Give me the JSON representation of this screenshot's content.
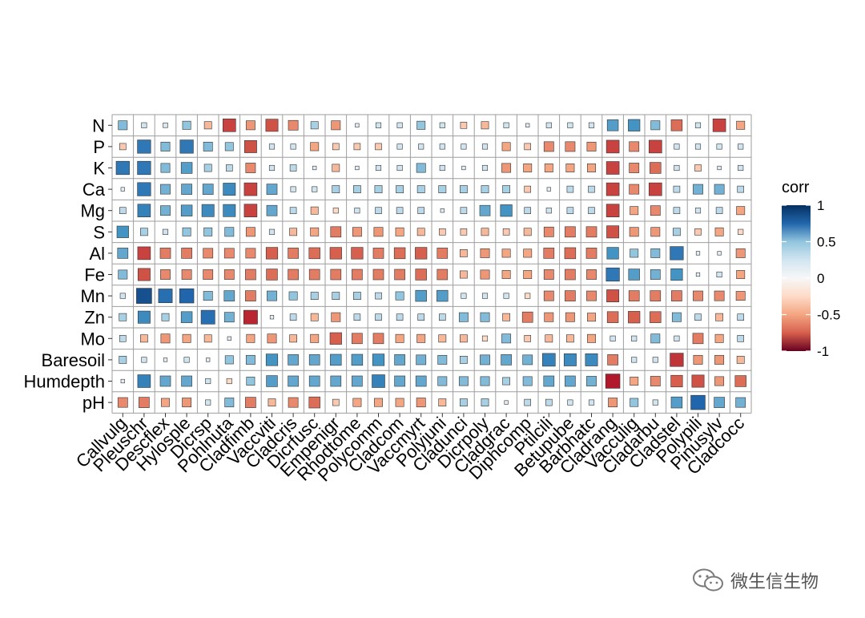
{
  "chart_data": {
    "type": "heatmap",
    "title": "",
    "xlabel": "",
    "ylabel": "",
    "legend": {
      "title": "corr",
      "placement": "right",
      "ticks": [
        1,
        0.5,
        0,
        -0.5,
        -1
      ]
    },
    "grid": true,
    "colorscale": {
      "-1": "#67001f",
      "-0.5": "#f4a582",
      "0": "#ffffff",
      "0.5": "#92c5de",
      "1": "#053061"
    },
    "x": [
      "Callvulg",
      "Pleuschr",
      "Descflex",
      "Hylosple",
      "Dicrsp",
      "Pohlnuta",
      "Cladfimb",
      "Vaccviti",
      "Cladcris",
      "Dicrfusc",
      "Empenigr",
      "Rhodtome",
      "Polycomm",
      "Cladcom",
      "Vaccmyrt",
      "Polyjuni",
      "Cladunci",
      "Dicrpoly",
      "Cladgrac",
      "Diphcomp",
      "Ptilcili",
      "Betupube",
      "Barbhatc",
      "Cladrang",
      "Vacculig",
      "Cladarbu",
      "Cladstel",
      "Polypili",
      "Pinusylv",
      "Cladcocc"
    ],
    "y": [
      "N",
      "P",
      "K",
      "Ca",
      "Mg",
      "S",
      "Al",
      "Fe",
      "Mn",
      "Zn",
      "Mo",
      "Baresoil",
      "Humdepth",
      "pH"
    ],
    "values": [
      [
        0.3,
        0.1,
        0.08,
        0.25,
        -0.2,
        -0.6,
        -0.3,
        -0.55,
        -0.35,
        0.2,
        -0.3,
        0.05,
        0.1,
        0.1,
        0.25,
        0.1,
        -0.15,
        -0.2,
        0.1,
        0.05,
        0.1,
        0.1,
        0.1,
        0.45,
        0.5,
        0.3,
        -0.45,
        0.1,
        -0.6,
        -0.25
      ],
      [
        -0.15,
        0.65,
        0.3,
        0.65,
        0.3,
        0.25,
        -0.55,
        0.1,
        0.1,
        -0.25,
        -0.15,
        -0.15,
        -0.15,
        0.1,
        0.1,
        0.1,
        0.1,
        0.1,
        -0.25,
        -0.15,
        -0.35,
        -0.35,
        -0.3,
        -0.6,
        -0.35,
        -0.6,
        0.1,
        0.1,
        0.1,
        0.1
      ],
      [
        0.65,
        0.65,
        0.3,
        0.45,
        0.2,
        0.15,
        -0.35,
        0.1,
        0.15,
        0.05,
        -0.2,
        0.05,
        0.1,
        0.1,
        0.3,
        0.1,
        0.05,
        0.1,
        -0.3,
        -0.25,
        -0.25,
        -0.25,
        -0.25,
        -0.6,
        -0.35,
        -0.45,
        0.1,
        -0.15,
        0.05,
        0.1
      ],
      [
        0.05,
        0.65,
        0.35,
        0.4,
        0.4,
        0.55,
        -0.6,
        0.4,
        0.1,
        0.1,
        0.2,
        0.2,
        0.2,
        0.2,
        0.2,
        0.2,
        0.2,
        0.2,
        0.2,
        -0.15,
        0.05,
        0.15,
        0.15,
        -0.6,
        -0.35,
        -0.6,
        0.15,
        0.35,
        0.35,
        0.15
      ],
      [
        0.15,
        0.6,
        0.35,
        0.45,
        0.55,
        0.55,
        -0.6,
        0.4,
        0.15,
        -0.2,
        -0.1,
        0.1,
        0.15,
        0.15,
        0.15,
        0.05,
        0.15,
        0.4,
        0.5,
        0.15,
        0.1,
        0.15,
        0.15,
        -0.6,
        -0.25,
        -0.35,
        0.15,
        0.1,
        0.15,
        -0.25
      ],
      [
        0.5,
        0.2,
        0.1,
        0.25,
        0.25,
        0.3,
        -0.3,
        0.1,
        -0.2,
        -0.25,
        -0.4,
        -0.3,
        -0.3,
        -0.25,
        -0.2,
        -0.15,
        -0.15,
        -0.2,
        -0.15,
        -0.2,
        -0.35,
        -0.4,
        -0.4,
        -0.55,
        -0.3,
        -0.3,
        0.2,
        -0.15,
        -0.25,
        -0.1
      ],
      [
        0.4,
        -0.6,
        -0.4,
        -0.4,
        -0.35,
        -0.35,
        -0.35,
        -0.5,
        -0.4,
        -0.45,
        -0.5,
        -0.5,
        -0.4,
        -0.45,
        -0.5,
        -0.4,
        -0.2,
        -0.3,
        -0.25,
        -0.25,
        -0.4,
        -0.45,
        -0.4,
        0.5,
        0.25,
        0.3,
        0.65,
        0.05,
        0.05,
        -0.3
      ],
      [
        0.3,
        -0.55,
        -0.35,
        -0.35,
        -0.35,
        -0.35,
        -0.4,
        -0.45,
        -0.4,
        -0.4,
        -0.4,
        -0.4,
        -0.4,
        -0.4,
        -0.45,
        -0.4,
        -0.2,
        -0.3,
        -0.25,
        -0.25,
        -0.35,
        -0.4,
        -0.35,
        0.65,
        0.45,
        0.35,
        0.5,
        0.05,
        0.1,
        -0.25
      ],
      [
        0.1,
        0.85,
        0.7,
        0.75,
        0.3,
        0.4,
        -0.4,
        0.35,
        0.25,
        0.2,
        0.2,
        0.2,
        0.15,
        0.25,
        0.45,
        0.45,
        0.1,
        0.1,
        0.1,
        -0.1,
        -0.35,
        -0.4,
        -0.35,
        -0.55,
        -0.4,
        -0.4,
        -0.4,
        -0.35,
        -0.35,
        -0.3
      ],
      [
        0.2,
        0.55,
        0.2,
        0.45,
        0.7,
        0.35,
        -0.7,
        0.05,
        0.15,
        -0.2,
        -0.3,
        0.15,
        0.15,
        0.15,
        0.15,
        0.15,
        0.3,
        0.3,
        -0.2,
        -0.4,
        -0.3,
        -0.3,
        -0.25,
        -0.45,
        -0.5,
        -0.45,
        0.3,
        0.15,
        -0.2,
        0.15
      ],
      [
        0.15,
        -0.2,
        -0.3,
        -0.25,
        -0.2,
        0.05,
        -0.25,
        -0.3,
        -0.2,
        -0.25,
        -0.5,
        -0.4,
        -0.4,
        -0.25,
        -0.25,
        -0.2,
        -0.2,
        -0.1,
        0.3,
        -0.15,
        -0.2,
        -0.2,
        -0.25,
        0.1,
        0.1,
        0.3,
        0.1,
        -0.4,
        -0.25,
        0.15
      ],
      [
        0.2,
        0.1,
        0.05,
        0.1,
        0.05,
        0.25,
        0.3,
        0.5,
        0.4,
        0.4,
        0.45,
        0.45,
        0.5,
        0.4,
        0.35,
        0.3,
        0.2,
        0.35,
        0.4,
        0.35,
        0.6,
        0.55,
        0.55,
        -0.4,
        0.1,
        0.1,
        -0.65,
        -0.3,
        -0.3,
        -0.2
      ],
      [
        0.05,
        0.6,
        0.4,
        0.4,
        0.1,
        -0.1,
        0.25,
        0.45,
        0.4,
        0.4,
        0.4,
        0.4,
        0.6,
        0.4,
        0.4,
        0.3,
        0.3,
        0.3,
        0.2,
        0.3,
        0.4,
        0.4,
        0.35,
        -0.75,
        -0.25,
        -0.35,
        -0.5,
        -0.55,
        -0.3,
        -0.45
      ],
      [
        -0.35,
        -0.4,
        -0.25,
        -0.3,
        0.1,
        0.3,
        -0.4,
        -0.2,
        -0.35,
        -0.45,
        -0.15,
        -0.25,
        -0.25,
        -0.25,
        -0.3,
        -0.2,
        0.2,
        0.2,
        0.05,
        0.15,
        0.15,
        0.1,
        0.1,
        -0.3,
        0.25,
        0.1,
        0.45,
        0.75,
        0.4,
        0.35
      ]
    ]
  },
  "watermark": {
    "text": "微生信生物",
    "icon": "wechat-icon"
  }
}
